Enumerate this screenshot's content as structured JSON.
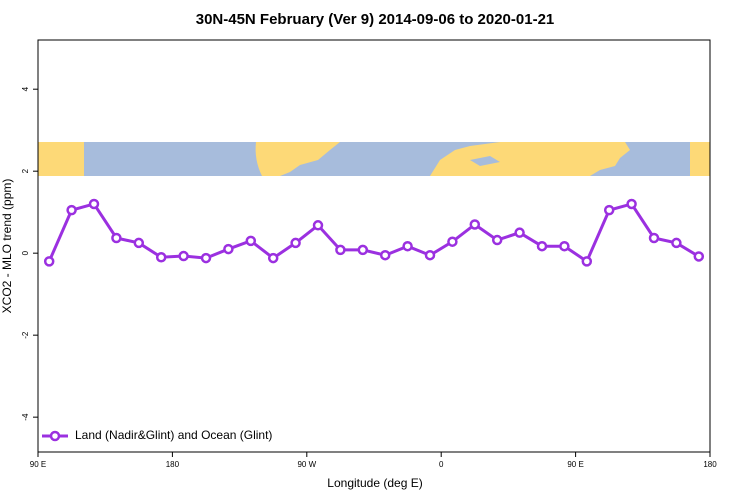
{
  "chart_data": {
    "type": "line",
    "title": "30N-45N February (Ver 9)   2014-09-06 to 2020-01-21",
    "x_label": "Longitude (deg E)",
    "y_label": "XCO2 - MLO trend (ppm)",
    "x": [
      97.5,
      112.5,
      127.5,
      142.5,
      157.5,
      172.5,
      187.5,
      202.5,
      217.5,
      232.5,
      247.5,
      262.5,
      277.5,
      292.5,
      307.5,
      322.5,
      337.5,
      352.5,
      367.5,
      382.5,
      397.5,
      412.5,
      427.5,
      442.5,
      457.5,
      472.5,
      487.5,
      502.5,
      517.5,
      532.5
    ],
    "series": [
      {
        "name": "Land (Nadir&Glint) and Ocean (Glint)",
        "color": "#9b30e0",
        "values": [
          -0.2,
          1.05,
          1.2,
          0.37,
          0.25,
          -0.1,
          -0.07,
          -0.12,
          0.1,
          0.3,
          -0.12,
          0.25,
          0.68,
          0.08,
          0.08,
          -0.05,
          0.17,
          -0.05,
          0.28,
          0.7,
          0.32,
          0.5,
          0.17,
          0.17,
          -0.2,
          1.05,
          1.2,
          0.37,
          0.25,
          -0.08
        ]
      }
    ],
    "xlim": [
      90,
      540
    ],
    "xticks": [
      {
        "value": 90,
        "label": "90 E"
      },
      {
        "value": 180,
        "label": "180"
      },
      {
        "value": 270,
        "label": "90 W"
      },
      {
        "value": 360,
        "label": "0"
      },
      {
        "value": 450,
        "label": "90 E"
      },
      {
        "value": 540,
        "label": "180"
      }
    ],
    "ylim": [
      -4.85,
      5.2
    ],
    "yticks": [
      -4,
      -2,
      0,
      2,
      4
    ],
    "legend": "bottom-left"
  }
}
